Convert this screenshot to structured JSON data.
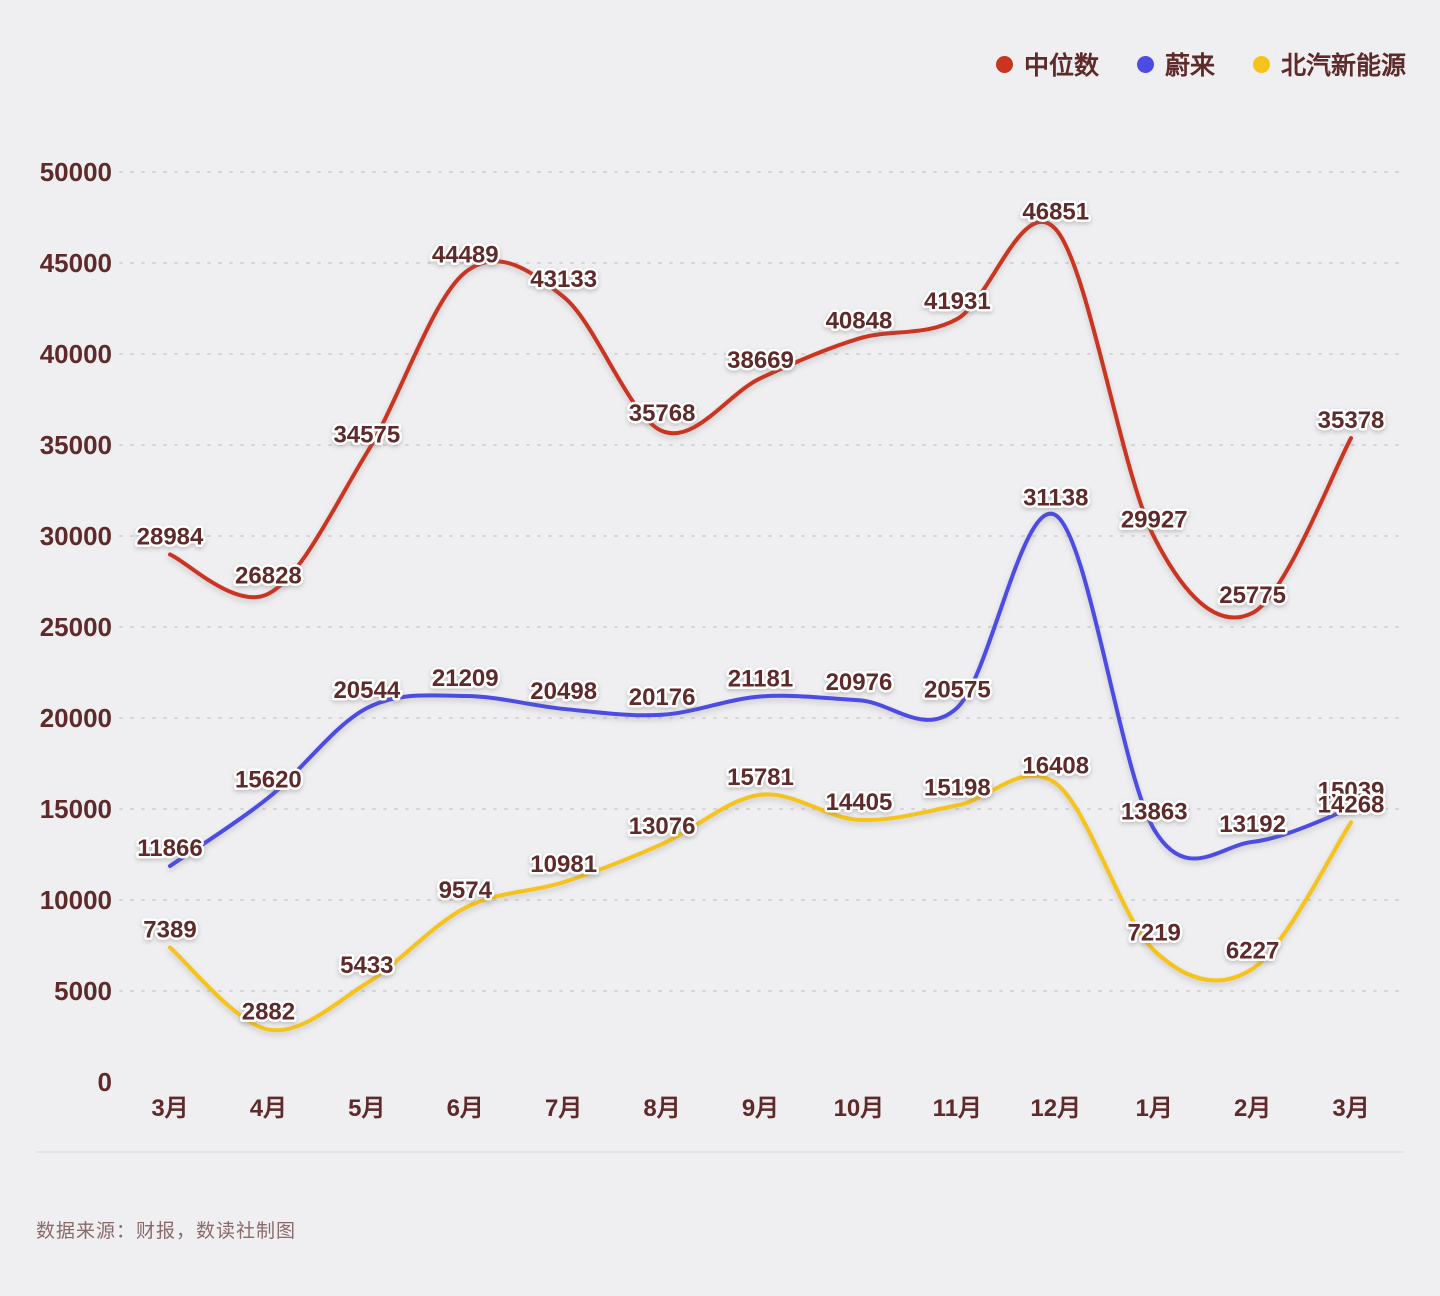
{
  "chart_data": {
    "type": "line",
    "title": "",
    "categories": [
      "3月",
      "4月",
      "5月",
      "6月",
      "7月",
      "8月",
      "9月",
      "10月",
      "11月",
      "12月",
      "1月",
      "2月",
      "3月"
    ],
    "series": [
      {
        "name": "中位数",
        "color": "#ca3522",
        "values": [
          28984,
          26828,
          34575,
          44489,
          43133,
          35768,
          38669,
          40848,
          41931,
          46851,
          29927,
          25775,
          35378
        ]
      },
      {
        "name": "蔚来",
        "color": "#4c4ce4",
        "values": [
          11866,
          15620,
          20544,
          21209,
          20498,
          20176,
          21181,
          20976,
          20575,
          31138,
          13863,
          13192,
          15039
        ]
      },
      {
        "name": "北汽新能源",
        "color": "#f5c319",
        "values": [
          7389,
          2882,
          5433,
          9574,
          10981,
          13076,
          15781,
          14405,
          15198,
          16408,
          7219,
          6227,
          14268
        ]
      }
    ],
    "ylim": [
      0,
      50000
    ],
    "y_ticks": [
      0,
      5000,
      10000,
      15000,
      20000,
      25000,
      30000,
      35000,
      40000,
      45000,
      50000
    ],
    "xlabel": "",
    "ylabel": "",
    "grid": "horizontal-dotted",
    "legend_position": "top-right",
    "line_style": "smooth",
    "data_labels": "all-points"
  },
  "colors": {
    "label_text": "#5e2a2a",
    "grid": "#d6d3d4",
    "background": "#efeff1",
    "source_text": "#8a6a6a"
  },
  "source": {
    "text": "数据来源：财报，数读社制图"
  }
}
